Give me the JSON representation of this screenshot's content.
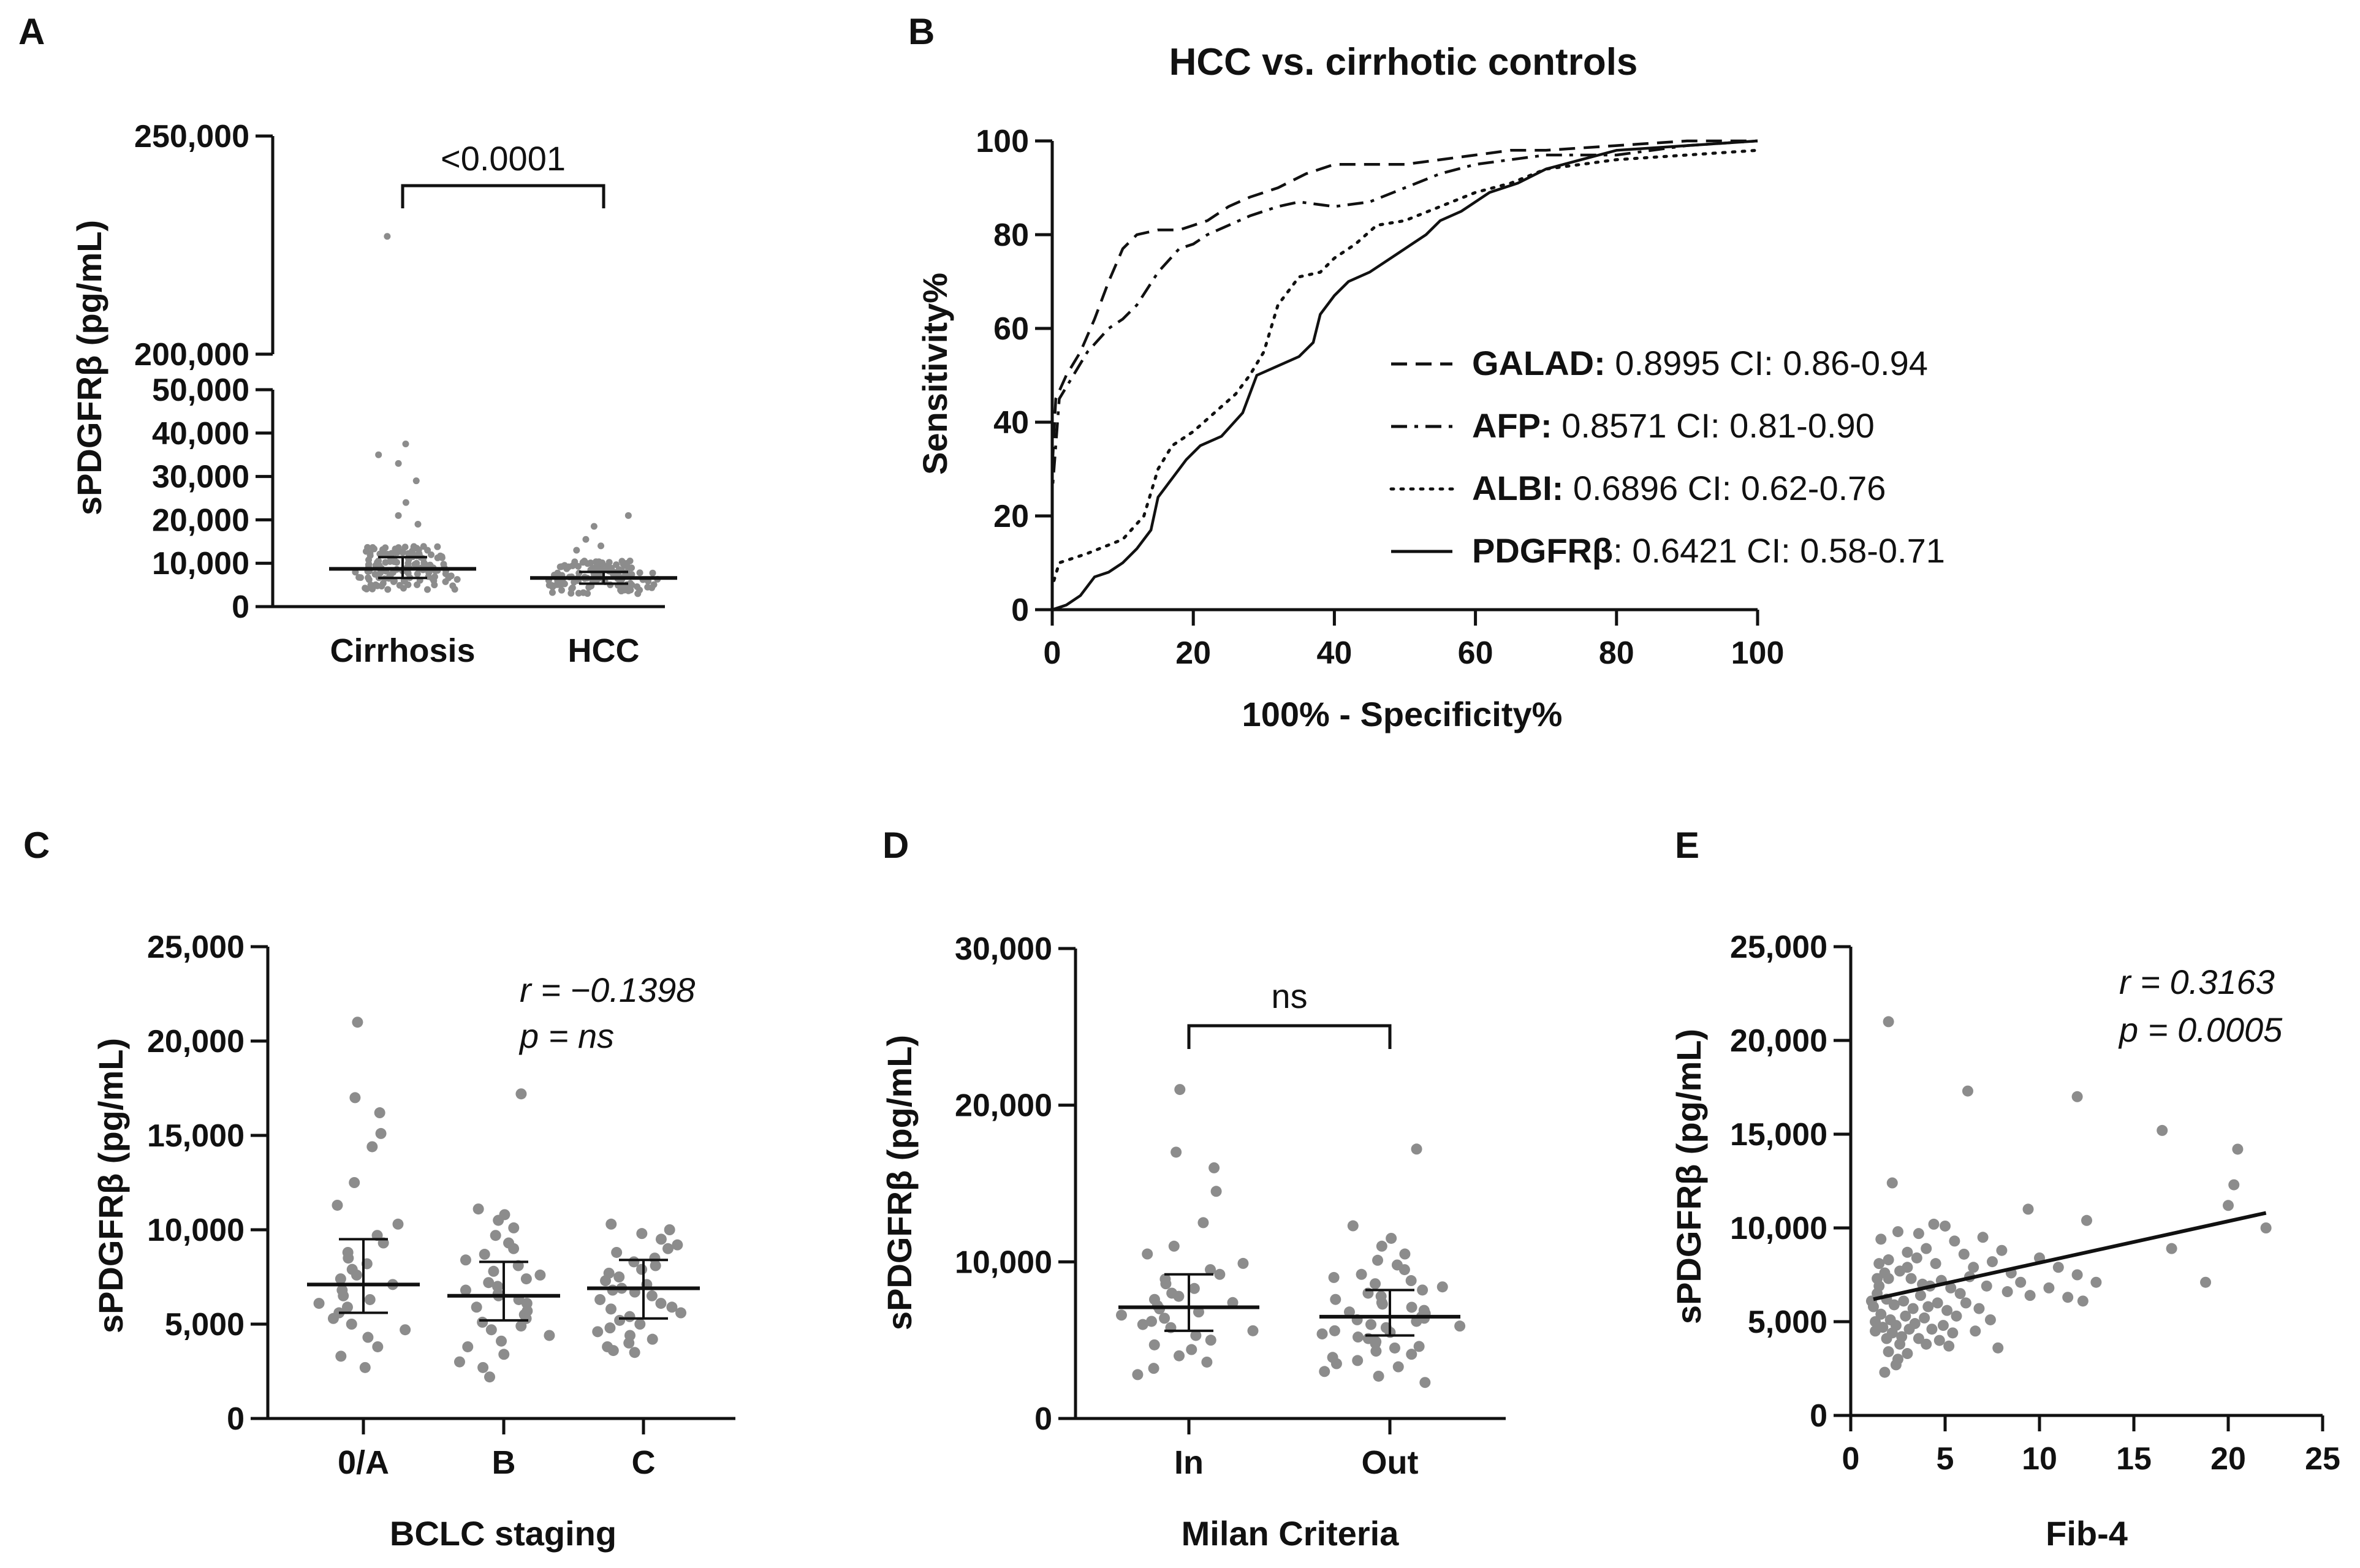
{
  "chart_data": [
    {
      "panel": "A",
      "type": "scatter",
      "ylabel": "sPDGFRβ (pg/mL)",
      "categories": [
        "Cirrhosis",
        "HCC"
      ],
      "y_ticks_lower": [
        "0",
        "10,000",
        "20,000",
        "30,000",
        "40,000",
        "50,000"
      ],
      "y_ticks_upper": [
        "200,000",
        "250,000"
      ],
      "ylim_lower": [
        0,
        50000
      ],
      "ylim_upper": [
        200000,
        250000
      ],
      "medians": [
        8700,
        6600
      ],
      "iqr": [
        [
          6600,
          11400
        ],
        [
          5300,
          8000
        ]
      ],
      "comparison": "<0.0001",
      "notable_points": [
        227000,
        37500,
        35000,
        33000,
        29000,
        24000,
        21000,
        19000
      ]
    },
    {
      "panel": "B",
      "type": "line",
      "title": "HCC vs. cirrhotic controls",
      "xlabel": "100% - Specificity%",
      "ylabel": "Sensitivity%",
      "x_ticks": [
        "0",
        "20",
        "40",
        "60",
        "80",
        "100"
      ],
      "y_ticks": [
        "0",
        "20",
        "40",
        "60",
        "80",
        "100"
      ],
      "xlim": [
        0,
        100
      ],
      "ylim": [
        0,
        100
      ],
      "legend": [
        {
          "name": "GALAD:",
          "value": "0.8995 CI: 0.86-0.94",
          "style": "dashed"
        },
        {
          "name": "AFP:",
          "value": "0.8571 CI: 0.81-0.90",
          "style": "dashdot"
        },
        {
          "name": "ALBI:",
          "value": "0.6896 CI: 0.62-0.76",
          "style": "dotted"
        },
        {
          "name": "PDGFRβ",
          "value": ": 0.6421 CI: 0.58-0.71",
          "style": "solid"
        }
      ],
      "series": [
        {
          "name": "GALAD",
          "points": [
            [
              0,
              0
            ],
            [
              0,
              30
            ],
            [
              0.5,
              45
            ],
            [
              2,
              50
            ],
            [
              4,
              55
            ],
            [
              6,
              62
            ],
            [
              8,
              70
            ],
            [
              10,
              77
            ],
            [
              12,
              80
            ],
            [
              15,
              81
            ],
            [
              18,
              81
            ],
            [
              20,
              82
            ],
            [
              22,
              83
            ],
            [
              25,
              86
            ],
            [
              28,
              88
            ],
            [
              32,
              90
            ],
            [
              36,
              93
            ],
            [
              40,
              95
            ],
            [
              45,
              95
            ],
            [
              50,
              95
            ],
            [
              55,
              96
            ],
            [
              60,
              97
            ],
            [
              65,
              98
            ],
            [
              70,
              98
            ],
            [
              80,
              99
            ],
            [
              90,
              100
            ],
            [
              100,
              100
            ]
          ]
        },
        {
          "name": "AFP",
          "points": [
            [
              0,
              0
            ],
            [
              0,
              25
            ],
            [
              0.5,
              35
            ],
            [
              1,
              45
            ],
            [
              3,
              50
            ],
            [
              5,
              55
            ],
            [
              8,
              60
            ],
            [
              10,
              62
            ],
            [
              12,
              65
            ],
            [
              15,
              72
            ],
            [
              18,
              77
            ],
            [
              20,
              78
            ],
            [
              22,
              80
            ],
            [
              25,
              82
            ],
            [
              28,
              84
            ],
            [
              32,
              86
            ],
            [
              35,
              87
            ],
            [
              40,
              86
            ],
            [
              45,
              87
            ],
            [
              50,
              90
            ],
            [
              55,
              93
            ],
            [
              60,
              95
            ],
            [
              65,
              96
            ],
            [
              70,
              97
            ],
            [
              80,
              97
            ],
            [
              90,
              99
            ],
            [
              100,
              100
            ]
          ]
        },
        {
          "name": "ALBI",
          "points": [
            [
              0,
              0
            ],
            [
              0,
              5
            ],
            [
              1,
              10
            ],
            [
              5,
              12
            ],
            [
              10,
              15
            ],
            [
              13,
              20
            ],
            [
              15,
              30
            ],
            [
              17,
              35
            ],
            [
              20,
              38
            ],
            [
              23,
              42
            ],
            [
              26,
              46
            ],
            [
              28,
              50
            ],
            [
              30,
              55
            ],
            [
              32,
              65
            ],
            [
              35,
              71
            ],
            [
              38,
              72
            ],
            [
              40,
              75
            ],
            [
              43,
              78
            ],
            [
              46,
              82
            ],
            [
              50,
              83
            ],
            [
              55,
              86
            ],
            [
              60,
              89
            ],
            [
              65,
              91
            ],
            [
              70,
              94
            ],
            [
              80,
              96
            ],
            [
              90,
              97
            ],
            [
              100,
              98
            ]
          ]
        },
        {
          "name": "PDGFRβ",
          "points": [
            [
              0,
              0
            ],
            [
              2,
              1
            ],
            [
              4,
              3
            ],
            [
              6,
              7
            ],
            [
              8,
              8
            ],
            [
              10,
              10
            ],
            [
              12,
              13
            ],
            [
              14,
              17
            ],
            [
              15,
              24
            ],
            [
              17,
              28
            ],
            [
              19,
              32
            ],
            [
              21,
              35
            ],
            [
              24,
              37
            ],
            [
              27,
              42
            ],
            [
              29,
              50
            ],
            [
              32,
              52
            ],
            [
              35,
              54
            ],
            [
              37,
              57
            ],
            [
              38,
              63
            ],
            [
              40,
              67
            ],
            [
              42,
              70
            ],
            [
              45,
              72
            ],
            [
              48,
              75
            ],
            [
              51,
              78
            ],
            [
              53,
              80
            ],
            [
              55,
              83
            ],
            [
              58,
              85
            ],
            [
              62,
              89
            ],
            [
              66,
              91
            ],
            [
              70,
              94
            ],
            [
              75,
              96
            ],
            [
              80,
              98
            ],
            [
              90,
              99
            ],
            [
              100,
              100
            ]
          ]
        }
      ]
    },
    {
      "panel": "C",
      "type": "scatter",
      "xlabel": "BCLC staging",
      "ylabel": "sPDGFRβ (pg/mL)",
      "categories": [
        "0/A",
        "B",
        "C"
      ],
      "y_ticks": [
        "0",
        "5,000",
        "10,000",
        "15,000",
        "20,000",
        "25,000"
      ],
      "ylim": [
        0,
        25000
      ],
      "medians": [
        7100,
        6500,
        6900
      ],
      "iqr": [
        [
          5600,
          9500
        ],
        [
          5200,
          8300
        ],
        [
          5300,
          8400
        ]
      ],
      "stats": [
        "r = −0.1398",
        "p = ns"
      ],
      "groups": [
        [
          21000,
          17000,
          16200,
          15100,
          14400,
          12500,
          11300,
          10300,
          9700,
          9300,
          8800,
          8500,
          8200,
          7900,
          7600,
          7400,
          7100,
          6800,
          6500,
          6300,
          6100,
          5900,
          5600,
          5300,
          5000,
          4700,
          4300,
          3800,
          3300,
          2700
        ],
        [
          17200,
          11100,
          10800,
          10500,
          10100,
          9700,
          9300,
          9000,
          8700,
          8400,
          8100,
          7800,
          7600,
          7400,
          7200,
          7000,
          6800,
          6600,
          6500,
          6300,
          6100,
          5900,
          5700,
          5500,
          5300,
          5100,
          4900,
          4700,
          4400,
          4100,
          3800,
          3400,
          3000,
          2700,
          2200
        ],
        [
          10300,
          10000,
          9800,
          9500,
          9200,
          9000,
          8800,
          8500,
          8300,
          8100,
          7900,
          7700,
          7500,
          7300,
          7100,
          6900,
          6800,
          6700,
          6500,
          6300,
          6100,
          5900,
          5800,
          5600,
          5400,
          5200,
          5000,
          4800,
          4600,
          4400,
          4200,
          4000,
          3800,
          3600,
          3500
        ]
      ]
    },
    {
      "panel": "D",
      "type": "scatter",
      "xlabel": "Milan Criteria",
      "ylabel": "sPDGFRβ (pg/mL)",
      "categories": [
        "In",
        "Out"
      ],
      "y_ticks": [
        "0",
        "10,000",
        "20,000",
        "30,000"
      ],
      "ylim": [
        0,
        30000
      ],
      "medians": [
        7100,
        6500
      ],
      "iqr": [
        [
          5600,
          9200
        ],
        [
          5300,
          8200
        ]
      ],
      "comparison": "ns",
      "groups": [
        [
          21000,
          17000,
          16000,
          14500,
          12500,
          11000,
          10500,
          9900,
          9500,
          9200,
          8900,
          8600,
          8300,
          8000,
          7800,
          7600,
          7400,
          7200,
          7000,
          6800,
          6600,
          6400,
          6200,
          6000,
          5800,
          5600,
          5300,
          5000,
          4700,
          4400,
          4000,
          3600,
          3200,
          2800
        ],
        [
          17200,
          12300,
          11500,
          11000,
          10500,
          10100,
          9800,
          9500,
          9200,
          9000,
          8800,
          8600,
          8400,
          8200,
          8000,
          7800,
          7600,
          7400,
          7300,
          7100,
          6900,
          6800,
          6700,
          6500,
          6400,
          6300,
          6200,
          6000,
          5900,
          5800,
          5600,
          5500,
          5400,
          5200,
          5100,
          4900,
          4800,
          4600,
          4500,
          4300,
          4100,
          3900,
          3700,
          3500,
          3300,
          3000,
          2700,
          2300
        ]
      ]
    },
    {
      "panel": "E",
      "type": "scatter",
      "xlabel": "Fib-4",
      "ylabel": "sPDGFRβ (pg/mL)",
      "x_ticks": [
        "0",
        "5",
        "10",
        "15",
        "20",
        "25"
      ],
      "y_ticks": [
        "0",
        "5,000",
        "10,000",
        "15,000",
        "20,000",
        "25,000"
      ],
      "xlim": [
        0,
        25
      ],
      "ylim": [
        0,
        25000
      ],
      "stats": [
        "r = 0.3163",
        "p = 0.0005"
      ],
      "regression": [
        [
          1.2,
          6200
        ],
        [
          22,
          10800
        ]
      ],
      "points": [
        [
          2,
          21000
        ],
        [
          6.2,
          17300
        ],
        [
          12,
          17000
        ],
        [
          16.5,
          15200
        ],
        [
          20.5,
          14200
        ],
        [
          2.2,
          12400
        ],
        [
          20.3,
          12300
        ],
        [
          12.5,
          10400
        ],
        [
          20,
          11200
        ],
        [
          22,
          10000
        ],
        [
          17,
          8900
        ],
        [
          18.8,
          7100
        ],
        [
          9.4,
          11000
        ],
        [
          4.4,
          10200
        ],
        [
          5,
          10100
        ],
        [
          3.6,
          9700
        ],
        [
          1.6,
          9400
        ],
        [
          2.5,
          9800
        ],
        [
          5.5,
          9300
        ],
        [
          7,
          9500
        ],
        [
          8,
          8800
        ],
        [
          10,
          8400
        ],
        [
          11,
          7900
        ],
        [
          12,
          7500
        ],
        [
          13,
          7100
        ],
        [
          3,
          8700
        ],
        [
          3.5,
          8400
        ],
        [
          4,
          8900
        ],
        [
          4.5,
          8100
        ],
        [
          6,
          8600
        ],
        [
          6.5,
          7900
        ],
        [
          7.5,
          8200
        ],
        [
          8.5,
          7600
        ],
        [
          9,
          7100
        ],
        [
          1.5,
          8100
        ],
        [
          1.8,
          7600
        ],
        [
          2.6,
          7700
        ],
        [
          3.2,
          7300
        ],
        [
          3.8,
          7000
        ],
        [
          4.2,
          6900
        ],
        [
          4.8,
          7200
        ],
        [
          5.3,
          6800
        ],
        [
          5.8,
          6500
        ],
        [
          6.3,
          7400
        ],
        [
          7.2,
          6900
        ],
        [
          8.3,
          6600
        ],
        [
          9.5,
          6400
        ],
        [
          10.5,
          6800
        ],
        [
          11.5,
          6300
        ],
        [
          12.3,
          6100
        ],
        [
          1.4,
          6500
        ],
        [
          1.9,
          6200
        ],
        [
          2.3,
          5900
        ],
        [
          2.8,
          6100
        ],
        [
          3.3,
          5700
        ],
        [
          3.7,
          6400
        ],
        [
          4.1,
          5800
        ],
        [
          4.6,
          6000
        ],
        [
          5.1,
          5600
        ],
        [
          5.6,
          5300
        ],
        [
          6.1,
          6000
        ],
        [
          6.8,
          5700
        ],
        [
          7.4,
          5100
        ],
        [
          1.2,
          5800
        ],
        [
          1.6,
          5400
        ],
        [
          2.1,
          5100
        ],
        [
          2.4,
          4800
        ],
        [
          2.9,
          5300
        ],
        [
          3.4,
          4900
        ],
        [
          3.9,
          5200
        ],
        [
          4.3,
          4600
        ],
        [
          4.9,
          4800
        ],
        [
          5.4,
          4400
        ],
        [
          6.6,
          4500
        ],
        [
          1.3,
          5000
        ],
        [
          1.7,
          4700
        ],
        [
          2.2,
          4400
        ],
        [
          2.7,
          4200
        ],
        [
          3.1,
          4600
        ],
        [
          3.6,
          4100
        ],
        [
          4.0,
          3800
        ],
        [
          4.7,
          4000
        ],
        [
          5.2,
          3700
        ],
        [
          7.8,
          3600
        ],
        [
          2.0,
          3400
        ],
        [
          2.5,
          3000
        ],
        [
          3.0,
          3300
        ],
        [
          1.8,
          2300
        ],
        [
          2.4,
          2700
        ],
        [
          1.5,
          6900
        ],
        [
          2.0,
          7300
        ],
        [
          3.0,
          7900
        ],
        [
          2.0,
          8300
        ],
        [
          1.4,
          7300
        ],
        [
          1.1,
          6100
        ],
        [
          1.3,
          4500
        ],
        [
          1.9,
          4100
        ],
        [
          2.6,
          3800
        ]
      ]
    }
  ],
  "panel_labels": [
    "A",
    "B",
    "C",
    "D",
    "E"
  ]
}
